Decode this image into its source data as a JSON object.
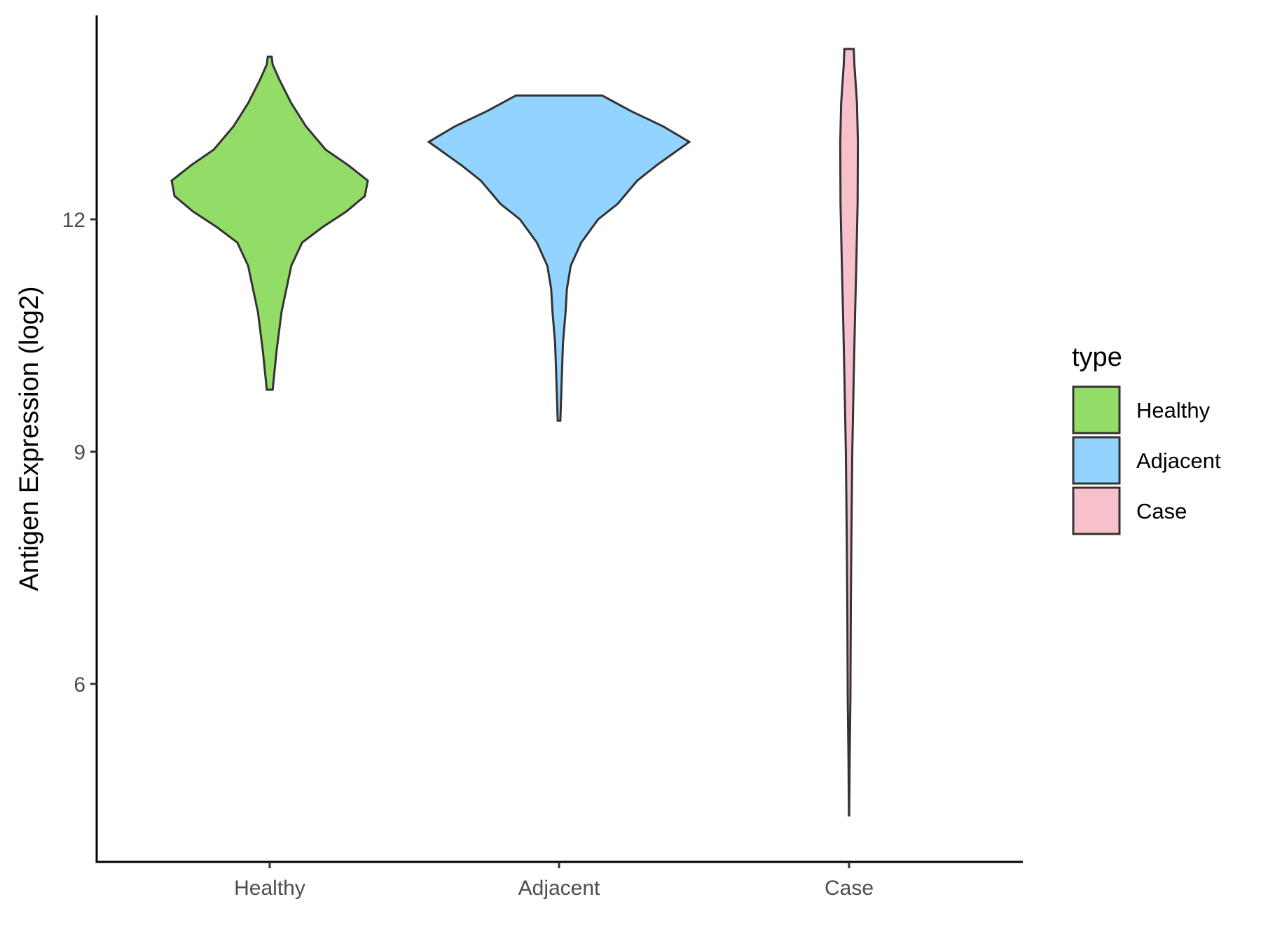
{
  "chart_data": {
    "type": "violin",
    "ylabel": "Antigen Expression (log2)",
    "xlabel": "",
    "categories": [
      "Healthy",
      "Adjacent",
      "Case"
    ],
    "ylim": [
      3.7,
      14.6
    ],
    "yticks": [
      6,
      9,
      12
    ],
    "ytick_labels": [
      "6",
      "9",
      "12"
    ],
    "grid": false,
    "legend": {
      "title": "type",
      "position": "right",
      "entries": [
        "Healthy",
        "Adjacent",
        "Case"
      ]
    },
    "series": [
      {
        "category": "Healthy",
        "color": "#93dc68",
        "min": 9.8,
        "max": 14.1,
        "density_profile": [
          [
            9.8,
            0.03
          ],
          [
            10.3,
            0.07
          ],
          [
            10.8,
            0.12
          ],
          [
            11.1,
            0.17
          ],
          [
            11.4,
            0.22
          ],
          [
            11.7,
            0.33
          ],
          [
            11.9,
            0.54
          ],
          [
            12.1,
            0.78
          ],
          [
            12.3,
            0.97
          ],
          [
            12.5,
            1.0
          ],
          [
            12.7,
            0.8
          ],
          [
            12.9,
            0.57
          ],
          [
            13.2,
            0.37
          ],
          [
            13.5,
            0.22
          ],
          [
            13.8,
            0.1
          ],
          [
            14.0,
            0.03
          ],
          [
            14.1,
            0.02
          ]
        ]
      },
      {
        "category": "Adjacent",
        "color": "#92d3ff",
        "min": 9.4,
        "max": 13.6,
        "density_profile": [
          [
            9.4,
            0.01
          ],
          [
            9.9,
            0.02
          ],
          [
            10.4,
            0.03
          ],
          [
            10.8,
            0.05
          ],
          [
            11.1,
            0.06
          ],
          [
            11.4,
            0.09
          ],
          [
            11.7,
            0.17
          ],
          [
            12.0,
            0.3
          ],
          [
            12.2,
            0.45
          ],
          [
            12.5,
            0.6
          ],
          [
            12.7,
            0.75
          ],
          [
            13.0,
            1.0
          ],
          [
            13.2,
            0.8
          ],
          [
            13.4,
            0.55
          ],
          [
            13.6,
            0.33
          ]
        ]
      },
      {
        "category": "Case",
        "color": "#f7c1cc",
        "min": 4.3,
        "max": 14.2,
        "density_profile": [
          [
            4.3,
            0.005
          ],
          [
            5.0,
            0.02
          ],
          [
            5.8,
            0.045
          ],
          [
            7.0,
            0.06
          ],
          [
            8.0,
            0.08
          ],
          [
            9.0,
            0.11
          ],
          [
            10.0,
            0.16
          ],
          [
            10.7,
            0.2
          ],
          [
            11.5,
            0.25
          ],
          [
            12.2,
            0.29
          ],
          [
            13.0,
            0.3
          ],
          [
            13.5,
            0.27
          ],
          [
            14.0,
            0.18
          ],
          [
            14.2,
            0.16
          ]
        ]
      }
    ]
  }
}
